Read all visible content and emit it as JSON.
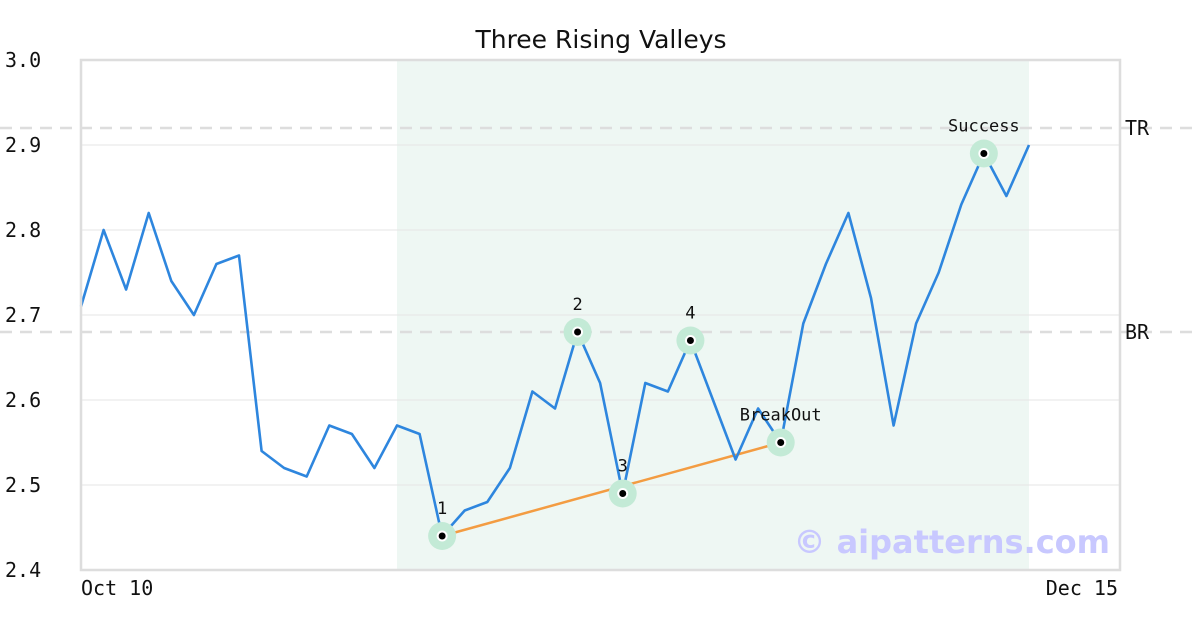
{
  "chart_data": {
    "type": "line",
    "title": "Three Rising Valleys",
    "xlabel": "",
    "ylabel": "",
    "ylim": [
      2.4,
      3.0
    ],
    "yticks": [
      "3.0",
      "2.9",
      "2.8",
      "2.7",
      "2.6",
      "2.5",
      "2.4"
    ],
    "ytick_values": [
      3.0,
      2.9,
      2.8,
      2.7,
      2.6,
      2.5,
      2.4
    ],
    "xtick_labels": {
      "start": "Oct 10",
      "end": "Dec 15"
    },
    "grid": true,
    "series": [
      {
        "color": "#2e86de",
        "values": [
          2.71,
          2.8,
          2.73,
          2.82,
          2.74,
          2.7,
          2.76,
          2.77,
          2.54,
          2.52,
          2.51,
          2.57,
          2.56,
          2.52,
          2.57,
          2.56,
          2.44,
          2.47,
          2.48,
          2.52,
          2.61,
          2.59,
          2.68,
          2.62,
          2.49,
          2.62,
          2.61,
          2.67,
          2.6,
          2.53,
          2.59,
          2.55,
          2.69,
          2.76,
          2.82,
          2.72,
          2.57,
          2.69,
          2.75,
          2.83,
          2.89,
          2.84,
          2.9
        ]
      }
    ],
    "reference_lines": [
      {
        "label": "TR",
        "value": 2.92
      },
      {
        "label": "BR",
        "value": 2.68
      }
    ],
    "shaded_region": {
      "from_index": 14,
      "to_index": 42,
      "color": "#eef7f3"
    },
    "trend_line": {
      "from_index": 16,
      "from_value": 2.44,
      "to_index": 31,
      "to_value": 2.55,
      "color": "#f39c42"
    },
    "points": [
      {
        "label": "1",
        "index": 16,
        "value": 2.44
      },
      {
        "label": "2",
        "index": 22,
        "value": 2.68
      },
      {
        "label": "3",
        "index": 24,
        "value": 2.49
      },
      {
        "label": "4",
        "index": 27,
        "value": 2.67
      },
      {
        "label": "BreakOut",
        "index": 31,
        "value": 2.55
      },
      {
        "label": "Success",
        "index": 40,
        "value": 2.89
      }
    ],
    "watermark": "© aipatterns.com"
  }
}
